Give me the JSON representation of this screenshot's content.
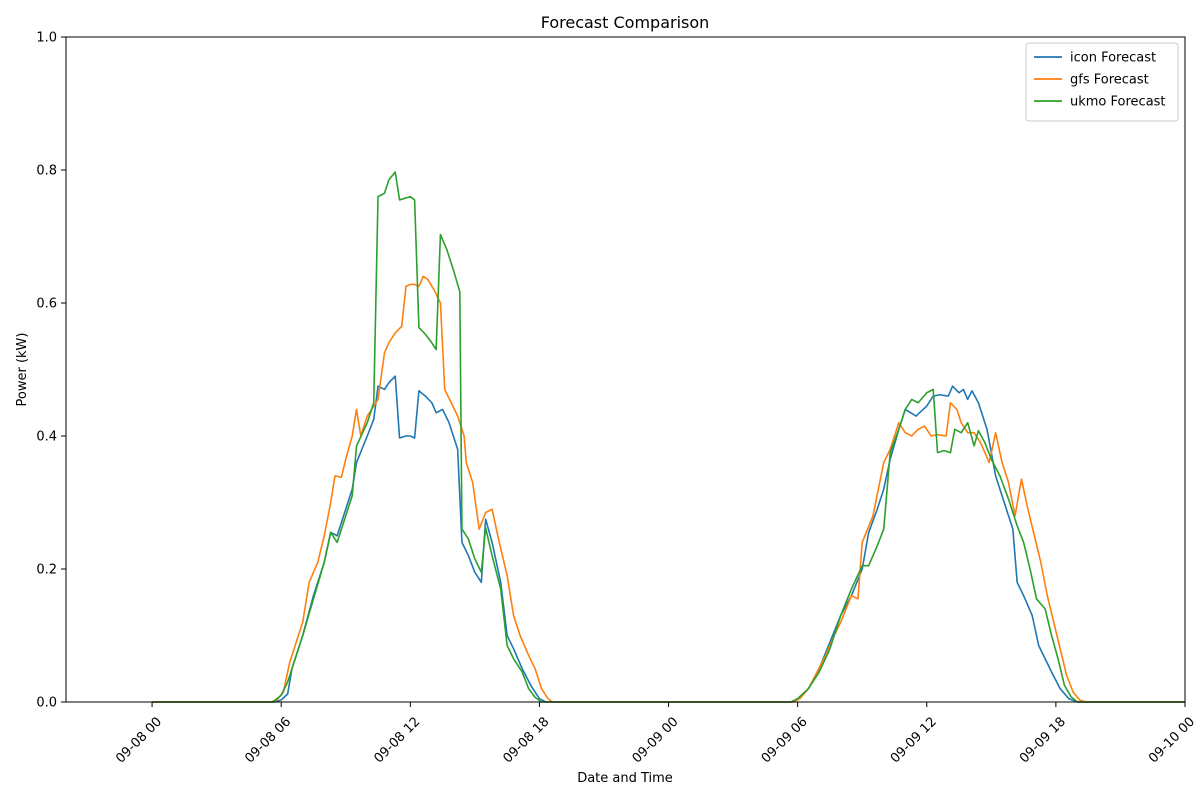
{
  "chart_data": {
    "type": "line",
    "title": "Forecast Comparison",
    "xlabel": "Date and Time",
    "ylabel": "Power (kW)",
    "ylim": [
      0,
      1.0
    ],
    "xlim_hours": [
      -4,
      48
    ],
    "y_ticks": [
      {
        "value": 0.0,
        "label": "0.0"
      },
      {
        "value": 0.2,
        "label": "0.2"
      },
      {
        "value": 0.4,
        "label": "0.4"
      },
      {
        "value": 0.6,
        "label": "0.6"
      },
      {
        "value": 0.8,
        "label": "0.8"
      },
      {
        "value": 1.0,
        "label": "1.0"
      }
    ],
    "x_ticks": [
      {
        "value": 0,
        "label": "09-08 00"
      },
      {
        "value": 6,
        "label": "09-08 06"
      },
      {
        "value": 12,
        "label": "09-08 12"
      },
      {
        "value": 18,
        "label": "09-08 18"
      },
      {
        "value": 24,
        "label": "09-09 00"
      },
      {
        "value": 30,
        "label": "09-09 06"
      },
      {
        "value": 36,
        "label": "09-09 12"
      },
      {
        "value": 42,
        "label": "09-09 18"
      },
      {
        "value": 48,
        "label": "09-10 00"
      }
    ],
    "legend_position": "top-right",
    "grid": false,
    "series": [
      {
        "name": "icon Forecast",
        "color": "#1f77b4",
        "points": [
          [
            0,
            0
          ],
          [
            5.7,
            0
          ],
          [
            6.0,
            0.003
          ],
          [
            6.3,
            0.012
          ],
          [
            6.5,
            0.05
          ],
          [
            7.0,
            0.1
          ],
          [
            7.5,
            0.16
          ],
          [
            8.0,
            0.21
          ],
          [
            8.3,
            0.255
          ],
          [
            8.6,
            0.25
          ],
          [
            9.0,
            0.29
          ],
          [
            9.3,
            0.32
          ],
          [
            9.5,
            0.36
          ],
          [
            10.0,
            0.4
          ],
          [
            10.3,
            0.425
          ],
          [
            10.5,
            0.475
          ],
          [
            10.8,
            0.47
          ],
          [
            11.0,
            0.48
          ],
          [
            11.3,
            0.49
          ],
          [
            11.5,
            0.397
          ],
          [
            11.8,
            0.4
          ],
          [
            12.0,
            0.4
          ],
          [
            12.2,
            0.397
          ],
          [
            12.4,
            0.468
          ],
          [
            12.7,
            0.46
          ],
          [
            13.0,
            0.45
          ],
          [
            13.2,
            0.435
          ],
          [
            13.5,
            0.44
          ],
          [
            13.8,
            0.42
          ],
          [
            14.2,
            0.38
          ],
          [
            14.4,
            0.24
          ],
          [
            14.7,
            0.22
          ],
          [
            15.0,
            0.195
          ],
          [
            15.3,
            0.18
          ],
          [
            15.5,
            0.275
          ],
          [
            15.8,
            0.24
          ],
          [
            16.2,
            0.18
          ],
          [
            16.5,
            0.1
          ],
          [
            16.8,
            0.08
          ],
          [
            17.2,
            0.05
          ],
          [
            17.6,
            0.025
          ],
          [
            18.0,
            0.005
          ],
          [
            18.3,
            0
          ],
          [
            24,
            0
          ],
          [
            29.7,
            0
          ],
          [
            30.0,
            0.005
          ],
          [
            30.5,
            0.02
          ],
          [
            31.0,
            0.05
          ],
          [
            31.5,
            0.09
          ],
          [
            32.0,
            0.13
          ],
          [
            32.5,
            0.16
          ],
          [
            33.0,
            0.2
          ],
          [
            33.3,
            0.255
          ],
          [
            33.7,
            0.29
          ],
          [
            34.0,
            0.32
          ],
          [
            34.3,
            0.365
          ],
          [
            34.7,
            0.41
          ],
          [
            35.0,
            0.44
          ],
          [
            35.5,
            0.43
          ],
          [
            36.0,
            0.445
          ],
          [
            36.3,
            0.46
          ],
          [
            36.6,
            0.462
          ],
          [
            37.0,
            0.46
          ],
          [
            37.2,
            0.475
          ],
          [
            37.5,
            0.465
          ],
          [
            37.7,
            0.47
          ],
          [
            37.9,
            0.455
          ],
          [
            38.1,
            0.468
          ],
          [
            38.4,
            0.45
          ],
          [
            38.8,
            0.41
          ],
          [
            39.2,
            0.34
          ],
          [
            39.6,
            0.3
          ],
          [
            40.0,
            0.26
          ],
          [
            40.2,
            0.18
          ],
          [
            40.5,
            0.16
          ],
          [
            40.9,
            0.13
          ],
          [
            41.2,
            0.085
          ],
          [
            41.5,
            0.065
          ],
          [
            41.8,
            0.045
          ],
          [
            42.2,
            0.02
          ],
          [
            42.6,
            0.005
          ],
          [
            43.0,
            0
          ],
          [
            48,
            0
          ]
        ]
      },
      {
        "name": "gfs Forecast",
        "color": "#ff7f0e",
        "points": [
          [
            0,
            0
          ],
          [
            5.5,
            0
          ],
          [
            5.8,
            0.003
          ],
          [
            6.1,
            0.015
          ],
          [
            6.4,
            0.06
          ],
          [
            7.0,
            0.12
          ],
          [
            7.3,
            0.18
          ],
          [
            7.7,
            0.21
          ],
          [
            8.0,
            0.25
          ],
          [
            8.3,
            0.3
          ],
          [
            8.5,
            0.34
          ],
          [
            8.8,
            0.338
          ],
          [
            9.0,
            0.365
          ],
          [
            9.3,
            0.4
          ],
          [
            9.5,
            0.44
          ],
          [
            9.7,
            0.4
          ],
          [
            10.0,
            0.43
          ],
          [
            10.5,
            0.455
          ],
          [
            10.8,
            0.525
          ],
          [
            11.0,
            0.54
          ],
          [
            11.3,
            0.555
          ],
          [
            11.6,
            0.565
          ],
          [
            11.8,
            0.625
          ],
          [
            12.0,
            0.628
          ],
          [
            12.2,
            0.628
          ],
          [
            12.4,
            0.625
          ],
          [
            12.6,
            0.64
          ],
          [
            12.8,
            0.636
          ],
          [
            13.1,
            0.62
          ],
          [
            13.4,
            0.6
          ],
          [
            13.6,
            0.47
          ],
          [
            13.9,
            0.45
          ],
          [
            14.2,
            0.43
          ],
          [
            14.5,
            0.4
          ],
          [
            14.6,
            0.36
          ],
          [
            14.9,
            0.33
          ],
          [
            15.2,
            0.26
          ],
          [
            15.5,
            0.285
          ],
          [
            15.8,
            0.29
          ],
          [
            16.1,
            0.245
          ],
          [
            16.5,
            0.19
          ],
          [
            16.8,
            0.13
          ],
          [
            17.1,
            0.1
          ],
          [
            17.5,
            0.07
          ],
          [
            17.8,
            0.05
          ],
          [
            18.1,
            0.02
          ],
          [
            18.4,
            0.005
          ],
          [
            18.6,
            0
          ],
          [
            24,
            0
          ],
          [
            29.8,
            0
          ],
          [
            30.1,
            0.005
          ],
          [
            30.5,
            0.02
          ],
          [
            30.9,
            0.045
          ],
          [
            31.3,
            0.07
          ],
          [
            31.7,
            0.1
          ],
          [
            32.0,
            0.12
          ],
          [
            32.5,
            0.16
          ],
          [
            32.8,
            0.155
          ],
          [
            33.0,
            0.24
          ],
          [
            33.5,
            0.28
          ],
          [
            34.0,
            0.36
          ],
          [
            34.3,
            0.38
          ],
          [
            34.7,
            0.42
          ],
          [
            35.0,
            0.405
          ],
          [
            35.3,
            0.4
          ],
          [
            35.6,
            0.41
          ],
          [
            35.9,
            0.415
          ],
          [
            36.2,
            0.4
          ],
          [
            36.5,
            0.402
          ],
          [
            36.9,
            0.4
          ],
          [
            37.1,
            0.45
          ],
          [
            37.4,
            0.44
          ],
          [
            37.6,
            0.42
          ],
          [
            37.9,
            0.405
          ],
          [
            38.2,
            0.405
          ],
          [
            38.5,
            0.39
          ],
          [
            38.9,
            0.36
          ],
          [
            39.2,
            0.405
          ],
          [
            39.5,
            0.36
          ],
          [
            39.8,
            0.33
          ],
          [
            40.1,
            0.28
          ],
          [
            40.4,
            0.335
          ],
          [
            40.7,
            0.29
          ],
          [
            41.0,
            0.25
          ],
          [
            41.3,
            0.21
          ],
          [
            41.6,
            0.16
          ],
          [
            41.9,
            0.12
          ],
          [
            42.2,
            0.08
          ],
          [
            42.5,
            0.04
          ],
          [
            42.8,
            0.015
          ],
          [
            43.1,
            0.003
          ],
          [
            43.4,
            0
          ],
          [
            48,
            0
          ]
        ]
      },
      {
        "name": "ukmo Forecast",
        "color": "#2ca02c",
        "points": [
          [
            0,
            0
          ],
          [
            5.6,
            0
          ],
          [
            6.0,
            0.01
          ],
          [
            6.3,
            0.03
          ],
          [
            6.6,
            0.06
          ],
          [
            7.0,
            0.1
          ],
          [
            7.5,
            0.155
          ],
          [
            8.0,
            0.21
          ],
          [
            8.3,
            0.255
          ],
          [
            8.6,
            0.24
          ],
          [
            9.0,
            0.28
          ],
          [
            9.3,
            0.31
          ],
          [
            9.5,
            0.385
          ],
          [
            10.0,
            0.42
          ],
          [
            10.3,
            0.45
          ],
          [
            10.5,
            0.76
          ],
          [
            10.8,
            0.765
          ],
          [
            11.0,
            0.785
          ],
          [
            11.3,
            0.797
          ],
          [
            11.5,
            0.755
          ],
          [
            11.8,
            0.758
          ],
          [
            12.0,
            0.76
          ],
          [
            12.2,
            0.755
          ],
          [
            12.4,
            0.563
          ],
          [
            12.7,
            0.553
          ],
          [
            13.0,
            0.54
          ],
          [
            13.2,
            0.53
          ],
          [
            13.4,
            0.703
          ],
          [
            13.7,
            0.68
          ],
          [
            14.0,
            0.65
          ],
          [
            14.3,
            0.617
          ],
          [
            14.4,
            0.26
          ],
          [
            14.7,
            0.245
          ],
          [
            15.0,
            0.215
          ],
          [
            15.3,
            0.195
          ],
          [
            15.5,
            0.262
          ],
          [
            15.8,
            0.22
          ],
          [
            16.2,
            0.17
          ],
          [
            16.5,
            0.085
          ],
          [
            16.8,
            0.065
          ],
          [
            17.2,
            0.045
          ],
          [
            17.5,
            0.02
          ],
          [
            17.8,
            0.007
          ],
          [
            18.1,
            0
          ],
          [
            24,
            0
          ],
          [
            29.7,
            0
          ],
          [
            30.0,
            0.005
          ],
          [
            30.5,
            0.02
          ],
          [
            31.0,
            0.045
          ],
          [
            31.5,
            0.08
          ],
          [
            32.0,
            0.13
          ],
          [
            32.5,
            0.17
          ],
          [
            33.0,
            0.205
          ],
          [
            33.3,
            0.205
          ],
          [
            33.7,
            0.235
          ],
          [
            34.0,
            0.26
          ],
          [
            34.3,
            0.375
          ],
          [
            34.7,
            0.41
          ],
          [
            35.0,
            0.44
          ],
          [
            35.3,
            0.455
          ],
          [
            35.6,
            0.45
          ],
          [
            36.0,
            0.465
          ],
          [
            36.3,
            0.47
          ],
          [
            36.5,
            0.375
          ],
          [
            36.8,
            0.378
          ],
          [
            37.1,
            0.375
          ],
          [
            37.3,
            0.41
          ],
          [
            37.6,
            0.405
          ],
          [
            37.9,
            0.42
          ],
          [
            38.2,
            0.385
          ],
          [
            38.4,
            0.408
          ],
          [
            38.7,
            0.39
          ],
          [
            39.0,
            0.365
          ],
          [
            39.4,
            0.34
          ],
          [
            39.8,
            0.305
          ],
          [
            40.2,
            0.265
          ],
          [
            40.5,
            0.24
          ],
          [
            40.8,
            0.2
          ],
          [
            41.1,
            0.155
          ],
          [
            41.5,
            0.14
          ],
          [
            41.8,
            0.1
          ],
          [
            42.1,
            0.065
          ],
          [
            42.4,
            0.025
          ],
          [
            42.7,
            0.008
          ],
          [
            43.0,
            0
          ],
          [
            48,
            0
          ]
        ]
      }
    ]
  }
}
